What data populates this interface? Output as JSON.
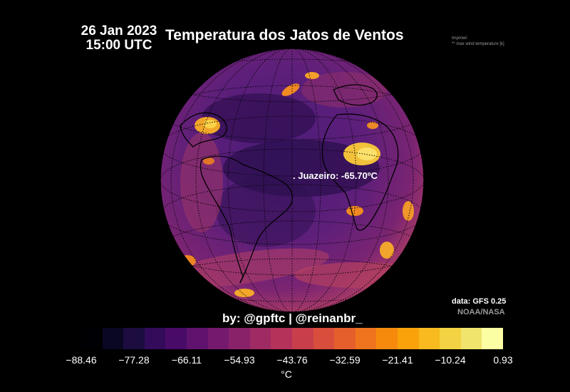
{
  "header": {
    "date": "26 Jan 2023",
    "time": "15:00 UTC",
    "title": "Temperatura dos Jatos de Ventos"
  },
  "meta_notes": [
    ".",
    "tmpmwl:",
    "** max wind temperature [k]"
  ],
  "map": {
    "projection": "orthographic",
    "location_label": ". Juazeiro: -65.70ºC"
  },
  "source": {
    "data": "data: GFS 0.25",
    "provider": "NOAA/NASA"
  },
  "credit": "by: @gpftc | @reinanbr_",
  "colorbar": {
    "ticks": [
      "−88.46",
      "−77.28",
      "−66.11",
      "−54.93",
      "−43.76",
      "−32.59",
      "−21.41",
      "−10.24",
      "0.93"
    ],
    "unit": "°C",
    "colors": [
      "#000004",
      "#0a0722",
      "#1c0c3f",
      "#320b5b",
      "#490b68",
      "#5f136e",
      "#75196e",
      "#8a226a",
      "#a02a63",
      "#b5325a",
      "#c83f4b",
      "#d84d3c",
      "#e55f2c",
      "#ef741d",
      "#f68a0d",
      "#f9a209",
      "#f8ba1e",
      "#f3d243",
      "#f0e46d",
      "#fcfea4"
    ]
  }
}
